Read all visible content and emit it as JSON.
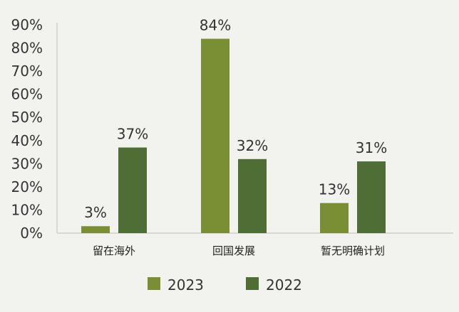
{
  "chart_data": {
    "type": "bar",
    "categories": [
      "留在海外",
      "回国发展",
      "暂无明确计划"
    ],
    "series": [
      {
        "name": "2023",
        "color": "#7a8f34",
        "values": [
          3,
          84,
          13
        ],
        "labels": [
          "3%",
          "84%",
          "13%"
        ]
      },
      {
        "name": "2022",
        "color": "#4f6e35",
        "values": [
          37,
          32,
          31
        ],
        "labels": [
          "37%",
          "32%",
          "31%"
        ]
      }
    ],
    "y_ticks": [
      "0%",
      "10%",
      "20%",
      "30%",
      "40%",
      "50%",
      "60%",
      "70%",
      "80%",
      "90%"
    ],
    "ylim": [
      0,
      90
    ],
    "grid": false,
    "legend_position": "bottom"
  }
}
